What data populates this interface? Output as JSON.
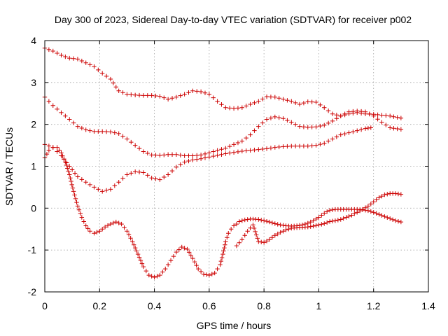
{
  "chart_data": {
    "type": "scatter",
    "title": "Day 300 of 2023, Sidereal Day-to-day VTEC variation (SDTVAR) for receiver p002",
    "xlabel": "GPS time / hours",
    "ylabel": "SDTVAR / TECUs",
    "xlim": [
      0,
      1.4
    ],
    "ylim": [
      -2,
      4
    ],
    "xticks": [
      "0",
      "0.2",
      "0.4",
      "0.6",
      "0.8",
      "1",
      "1.2",
      "1.4"
    ],
    "yticks": [
      "-2",
      "-1",
      "0",
      "1",
      "2",
      "3",
      "4"
    ],
    "xtick_values": [
      0,
      0.2,
      0.4,
      0.6,
      0.8,
      1.0,
      1.2,
      1.4
    ],
    "ytick_values": [
      -2,
      -1,
      0,
      1,
      2,
      3,
      4
    ],
    "grid": true,
    "marker": "+",
    "color": "#cc0000",
    "series": [
      {
        "name": "series-1",
        "x": [
          0,
          0.03,
          0.06,
          0.09,
          0.12,
          0.15,
          0.18,
          0.21,
          0.24,
          0.27,
          0.3,
          0.33,
          0.36,
          0.39,
          0.42,
          0.45,
          0.48,
          0.51,
          0.54,
          0.57,
          0.6,
          0.63,
          0.66,
          0.69,
          0.72,
          0.75,
          0.78,
          0.81,
          0.84,
          0.87,
          0.9,
          0.93,
          0.96,
          0.99,
          1.02,
          1.05,
          1.08,
          1.11,
          1.14,
          1.17,
          1.2,
          1.23,
          1.26,
          1.3
        ],
        "y": [
          3.82,
          3.75,
          3.65,
          3.58,
          3.56,
          3.47,
          3.38,
          3.22,
          3.08,
          2.8,
          2.72,
          2.7,
          2.69,
          2.69,
          2.67,
          2.6,
          2.65,
          2.72,
          2.8,
          2.78,
          2.72,
          2.55,
          2.4,
          2.38,
          2.4,
          2.48,
          2.55,
          2.66,
          2.65,
          2.6,
          2.55,
          2.48,
          2.54,
          2.53,
          2.4,
          2.25,
          2.2,
          2.25,
          2.28,
          2.25,
          2.24,
          2.22,
          2.2,
          2.15
        ]
      },
      {
        "name": "series-2",
        "x": [
          0,
          0.03,
          0.06,
          0.09,
          0.12,
          0.15,
          0.18,
          0.21,
          0.24,
          0.27,
          0.3,
          0.33,
          0.36,
          0.39,
          0.42,
          0.45,
          0.48,
          0.51,
          0.54,
          0.57,
          0.6,
          0.63,
          0.66,
          0.69,
          0.72,
          0.75,
          0.78,
          0.81,
          0.84,
          0.87,
          0.9,
          0.93,
          0.96,
          0.99,
          1.02,
          1.05,
          1.08,
          1.11,
          1.14,
          1.17,
          1.2,
          1.23,
          1.26,
          1.3
        ],
        "y": [
          2.65,
          2.45,
          2.28,
          2.12,
          1.95,
          1.87,
          1.83,
          1.83,
          1.82,
          1.78,
          1.65,
          1.5,
          1.35,
          1.27,
          1.26,
          1.28,
          1.28,
          1.25,
          1.25,
          1.27,
          1.32,
          1.38,
          1.43,
          1.52,
          1.6,
          1.75,
          1.95,
          2.12,
          2.18,
          2.14,
          2.05,
          1.95,
          1.93,
          1.94,
          1.98,
          2.08,
          2.2,
          2.3,
          2.32,
          2.3,
          2.2,
          2.05,
          1.92,
          1.88
        ]
      },
      {
        "name": "series-3",
        "x": [
          0,
          0.03,
          0.06,
          0.09,
          0.12,
          0.15,
          0.18,
          0.21,
          0.24,
          0.27,
          0.3,
          0.33,
          0.36,
          0.39,
          0.42,
          0.45,
          0.48,
          0.51,
          0.54,
          0.57,
          0.6,
          0.63,
          0.66,
          0.69,
          0.72,
          0.75,
          0.78,
          0.81,
          0.84,
          0.87,
          0.9,
          0.93,
          0.96,
          0.99,
          1.02,
          1.05,
          1.08,
          1.11,
          1.14,
          1.17,
          1.19
        ],
        "y": [
          1.52,
          1.45,
          1.25,
          1.0,
          0.75,
          0.62,
          0.5,
          0.4,
          0.45,
          0.62,
          0.8,
          0.87,
          0.85,
          0.72,
          0.68,
          0.8,
          0.98,
          1.1,
          1.15,
          1.18,
          1.22,
          1.26,
          1.3,
          1.33,
          1.36,
          1.38,
          1.4,
          1.42,
          1.45,
          1.47,
          1.48,
          1.48,
          1.48,
          1.5,
          1.55,
          1.65,
          1.75,
          1.8,
          1.85,
          1.9,
          1.92
        ]
      },
      {
        "name": "series-4",
        "x": [
          0,
          0.015,
          0.03,
          0.045,
          0.06,
          0.075,
          0.09,
          0.105,
          0.12,
          0.135,
          0.15,
          0.165,
          0.18,
          0.2,
          0.22,
          0.24,
          0.26,
          0.28,
          0.3,
          0.32,
          0.34,
          0.36,
          0.38,
          0.4,
          0.42,
          0.44,
          0.46,
          0.48,
          0.5,
          0.52,
          0.54,
          0.56,
          0.58,
          0.6,
          0.62,
          0.64,
          0.65,
          0.66,
          0.67,
          0.68,
          0.69,
          0.7,
          0.71,
          0.72,
          0.73,
          0.74,
          0.75,
          0.76,
          0.78,
          0.8,
          0.82,
          0.84,
          0.86,
          0.88,
          0.9,
          0.92,
          0.94,
          0.96,
          0.98,
          1.0,
          1.02,
          1.04,
          1.06,
          1.08,
          1.1,
          1.12,
          1.14,
          1.16,
          1.18,
          1.2,
          1.22,
          1.24,
          1.26,
          1.28,
          1.3
        ],
        "y": [
          1.2,
          1.38,
          1.45,
          1.45,
          1.32,
          1.1,
          0.8,
          0.4,
          0.05,
          -0.22,
          -0.42,
          -0.55,
          -0.6,
          -0.55,
          -0.45,
          -0.38,
          -0.33,
          -0.38,
          -0.55,
          -0.8,
          -1.1,
          -1.4,
          -1.6,
          -1.65,
          -1.6,
          -1.45,
          -1.25,
          -1.05,
          -0.93,
          -0.98,
          -1.2,
          -1.45,
          -1.58,
          -1.6,
          -1.55,
          -1.35,
          -1.1,
          -0.8,
          -0.6,
          -0.5,
          -0.42,
          -0.38,
          -0.32,
          -0.3,
          -0.28,
          -0.27,
          -0.26,
          -0.26,
          -0.27,
          -0.3,
          -0.33,
          -0.37,
          -0.4,
          -0.42,
          -0.43,
          -0.42,
          -0.4,
          -0.36,
          -0.3,
          -0.22,
          -0.12,
          -0.05,
          -0.03,
          -0.03,
          -0.03,
          -0.03,
          -0.03,
          -0.04,
          -0.06,
          -0.1,
          -0.15,
          -0.2,
          -0.25,
          -0.3,
          -0.33
        ]
      },
      {
        "name": "series-5",
        "x": [
          0.7,
          0.72,
          0.74,
          0.76,
          0.78,
          0.8,
          0.82,
          0.84,
          0.86,
          0.88,
          0.9,
          0.92,
          0.94,
          0.96,
          0.98,
          1.0,
          1.02,
          1.04,
          1.06,
          1.08,
          1.1,
          1.12,
          1.14,
          1.16,
          1.18,
          1.2,
          1.22,
          1.24,
          1.26,
          1.28,
          1.3
        ],
        "y": [
          -0.9,
          -0.75,
          -0.55,
          -0.4,
          -0.8,
          -0.82,
          -0.75,
          -0.65,
          -0.58,
          -0.52,
          -0.48,
          -0.47,
          -0.46,
          -0.45,
          -0.43,
          -0.4,
          -0.37,
          -0.32,
          -0.3,
          -0.27,
          -0.22,
          -0.17,
          -0.1,
          -0.03,
          0.05,
          0.15,
          0.25,
          0.32,
          0.35,
          0.35,
          0.33
        ]
      }
    ]
  }
}
